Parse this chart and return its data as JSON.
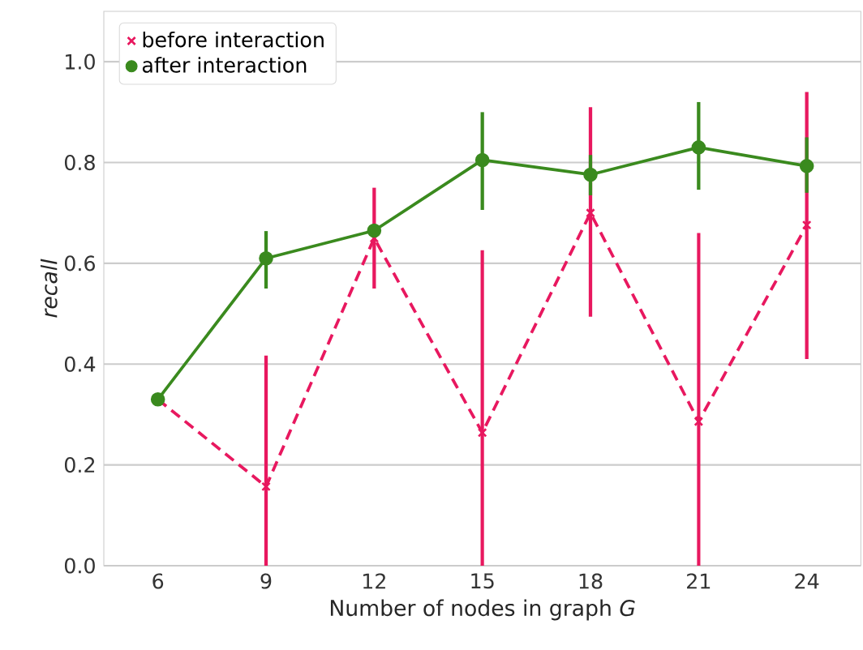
{
  "chart_data": {
    "type": "line",
    "xlabel": "Number of nodes in graph *G*",
    "ylabel": "recall",
    "x": [
      6,
      9,
      12,
      15,
      18,
      21,
      24
    ],
    "series": [
      {
        "name": "before interaction",
        "color": "#e8185f",
        "marker": "cross",
        "line_style": "dashed",
        "values": [
          0.33,
          0.157,
          0.65,
          0.264,
          0.7,
          0.286,
          0.676
        ],
        "errors": [
          null,
          [
            0,
            0.417
          ],
          [
            0.55,
            0.75
          ],
          [
            0,
            0.626
          ],
          [
            0.494,
            0.91
          ],
          [
            0,
            0.66
          ],
          [
            0.41,
            0.94
          ]
        ]
      },
      {
        "name": "after interaction",
        "color": "#3a8a1e",
        "marker": "circle",
        "line_style": "solid",
        "values": [
          0.33,
          0.61,
          0.665,
          0.805,
          0.776,
          0.83,
          0.793
        ],
        "errors": [
          null,
          [
            0.55,
            0.664
          ],
          null,
          [
            0.706,
            0.9
          ],
          [
            0.735,
            0.815
          ],
          [
            0.746,
            0.92
          ],
          [
            0.74,
            0.85
          ]
        ]
      }
    ],
    "xlim": [
      4.5,
      25.5
    ],
    "ylim": [
      0,
      1.1
    ],
    "xticks": [
      6,
      9,
      12,
      15,
      18,
      21,
      24
    ],
    "yticks": [
      {
        "value": 0,
        "label": "0.0"
      },
      {
        "value": 0.2,
        "label": "0.2"
      },
      {
        "value": 0.4,
        "label": "0.4"
      },
      {
        "value": 0.6,
        "label": "0.6"
      },
      {
        "value": 0.8,
        "label": "0.8"
      },
      {
        "value": 1.0,
        "label": "1.0"
      }
    ],
    "grid": "y",
    "legend": "top left"
  }
}
